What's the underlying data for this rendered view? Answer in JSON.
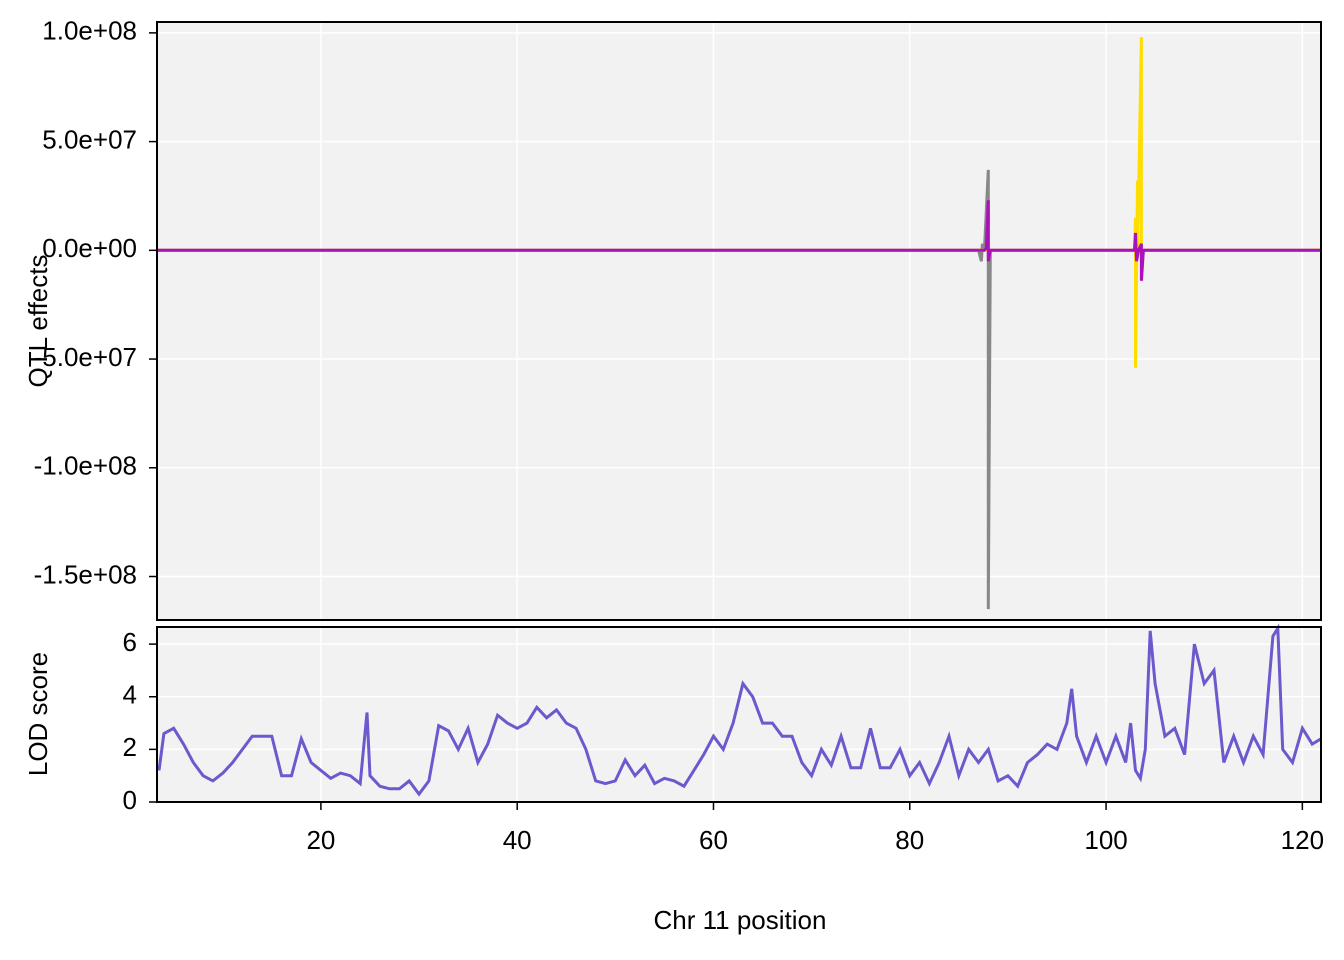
{
  "chart_data": [
    {
      "type": "line",
      "ylabel": "QTL effects",
      "xlim": [
        3.3,
        121.9
      ],
      "xticks": [
        20,
        40,
        60,
        80,
        100,
        120
      ],
      "ylim": [
        -170000000,
        105000000
      ],
      "yticks": [
        {
          "value": 100000000,
          "label": "1.0e+08"
        },
        {
          "value": 50000000,
          "label": "5.0e+07"
        },
        {
          "value": 0,
          "label": "0.0e+00"
        },
        {
          "value": -50000000,
          "label": "-5.0e+07"
        },
        {
          "value": -100000000,
          "label": "-1.0e+08"
        },
        {
          "value": -150000000,
          "label": "-1.5e+08"
        }
      ],
      "grid": true,
      "series": [
        {
          "color": "#888888",
          "x": [
            3.3,
            87.0,
            87.3,
            87.4,
            87.6,
            88.0,
            88.0,
            88.2,
            121.9
          ],
          "values": [
            0,
            0,
            -5000000,
            3000000,
            0,
            37000000,
            -165000000,
            0,
            0
          ]
        },
        {
          "color": "#ffdd00",
          "x": [
            3.3,
            102.9,
            103.0,
            103.0,
            103.2,
            103.2,
            103.6,
            103.6,
            103.8,
            121.9
          ],
          "values": [
            0,
            0,
            15000000,
            -54000000,
            32000000,
            -3000000,
            98000000,
            -5000000,
            0,
            0
          ]
        },
        {
          "color": "#aa11bb",
          "x": [
            3.3,
            87.6,
            87.8,
            88.0,
            88.0,
            88.2,
            102.9,
            103.0,
            103.1,
            103.3,
            103.6,
            103.6,
            103.8,
            121.9
          ],
          "values": [
            0,
            0,
            1000000,
            23000000,
            -5000000,
            0,
            0,
            8000000,
            -5000000,
            0,
            3000000,
            -14000000,
            0,
            0
          ]
        }
      ]
    },
    {
      "type": "line",
      "ylabel": "LOD score",
      "xlabel": "Chr 11 position",
      "xlim": [
        3.3,
        121.9
      ],
      "xticks": [
        20,
        40,
        60,
        80,
        100,
        120
      ],
      "ylim": [
        0,
        6.65
      ],
      "yticks": [
        0,
        2,
        4,
        6
      ],
      "grid": true,
      "series": [
        {
          "color": "#6a5acd",
          "x": [
            3.5,
            4,
            5,
            6,
            7,
            8,
            9,
            10,
            11,
            12,
            13,
            14,
            15,
            16,
            17,
            18,
            19,
            20,
            21,
            22,
            23,
            24,
            24.7,
            25,
            26,
            27,
            28,
            29,
            30,
            31,
            32,
            33,
            34,
            35,
            36,
            37,
            38,
            39,
            40,
            41,
            42,
            43,
            44,
            45,
            46,
            47,
            48,
            49,
            50,
            51,
            52,
            53,
            54,
            55,
            56,
            57,
            58,
            59,
            60,
            61,
            62,
            63,
            64,
            65,
            66,
            67,
            68,
            69,
            70,
            71,
            72,
            73,
            74,
            75,
            76,
            77,
            78,
            79,
            80,
            81,
            82,
            83,
            84,
            85,
            86,
            87,
            88,
            89,
            90,
            91,
            92,
            93,
            94,
            95,
            96,
            96.5,
            97,
            98,
            99,
            100,
            101,
            102,
            102.5,
            103,
            103.5,
            104,
            104.5,
            105,
            106,
            107,
            108,
            109,
            110,
            111,
            112,
            113,
            114,
            115,
            116,
            117,
            117.5,
            118,
            119,
            120,
            121,
            121.9
          ],
          "values": [
            1.2,
            2.6,
            2.8,
            2.2,
            1.5,
            1.0,
            0.8,
            1.1,
            1.5,
            2.0,
            2.5,
            2.5,
            2.5,
            1.0,
            1.0,
            2.4,
            1.5,
            1.2,
            0.9,
            1.1,
            1.0,
            0.7,
            3.4,
            1.0,
            0.6,
            0.5,
            0.5,
            0.8,
            0.3,
            0.8,
            2.9,
            2.7,
            2.0,
            2.8,
            1.5,
            2.2,
            3.3,
            3.0,
            2.8,
            3.0,
            3.6,
            3.2,
            3.5,
            3.0,
            2.8,
            2.0,
            0.8,
            0.7,
            0.8,
            1.6,
            1.0,
            1.4,
            0.7,
            0.9,
            0.8,
            0.6,
            1.2,
            1.8,
            2.5,
            2.0,
            3.0,
            4.5,
            4.0,
            3.0,
            3.0,
            2.5,
            2.5,
            1.5,
            1.0,
            2.0,
            1.4,
            2.5,
            1.3,
            1.3,
            2.8,
            1.3,
            1.3,
            2.0,
            1.0,
            1.5,
            0.7,
            1.5,
            2.5,
            1.0,
            2.0,
            1.5,
            2.0,
            0.8,
            1.0,
            0.6,
            1.5,
            1.8,
            2.2,
            2.0,
            3.0,
            4.3,
            2.5,
            1.5,
            2.5,
            1.5,
            2.5,
            1.5,
            3.0,
            1.2,
            0.9,
            2.0,
            6.5,
            4.5,
            2.5,
            2.8,
            1.8,
            6.0,
            4.5,
            5.0,
            1.5,
            2.5,
            1.5,
            2.5,
            1.8,
            6.3,
            6.6,
            2.0,
            1.5,
            2.8,
            2.2,
            2.4
          ]
        }
      ]
    }
  ]
}
